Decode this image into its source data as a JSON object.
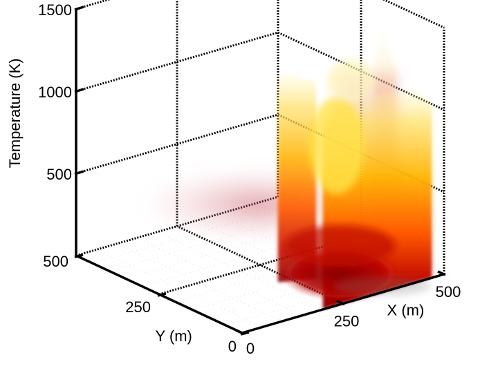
{
  "chart_data": {
    "type": "surface-3d",
    "title": "",
    "xlabel": "X (m)",
    "ylabel": "Y (m)",
    "zlabel": "Temperature (K)",
    "xlim": [
      0,
      500
    ],
    "ylim": [
      0,
      500
    ],
    "zlim": [
      0,
      1500
    ],
    "x_ticks": [
      "0",
      "250",
      "500"
    ],
    "y_ticks": [
      "0",
      "250",
      "500"
    ],
    "z_ticks": [
      "500",
      "1000",
      "1500"
    ],
    "grid": true,
    "colormap": [
      "#8b0000",
      "#cc1100",
      "#ff6a00",
      "#ffd400",
      "#fff3a0"
    ],
    "fire_region": {
      "x_range": [
        200,
        470
      ],
      "y_range": [
        0,
        200
      ],
      "peak_temperature": 1500
    }
  }
}
